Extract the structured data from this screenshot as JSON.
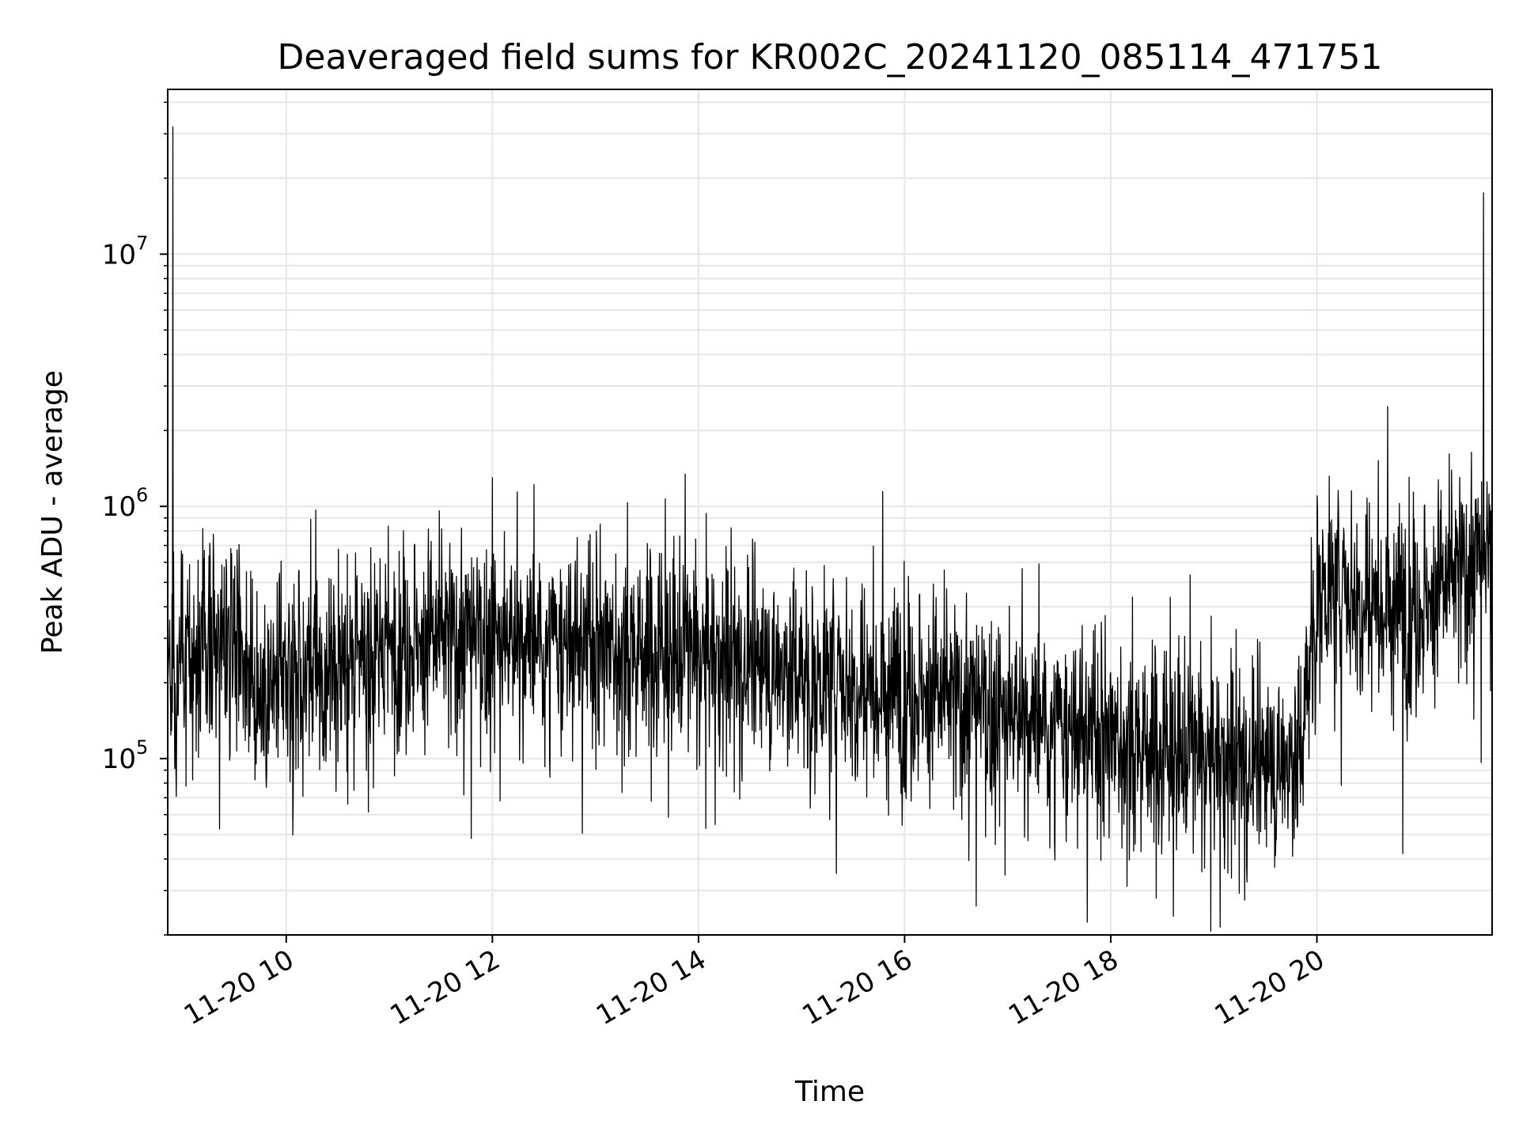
{
  "chart_data": {
    "type": "line",
    "title": "Deaveraged field sums for KR002C_20241120_085114_471751",
    "xlabel": "Time",
    "ylabel": "Peak ADU - average",
    "yscale": "log",
    "ylim": [
      20000,
      45000000
    ],
    "xlim": [
      "2024-11-20 08:51",
      "2024-11-20 21:42"
    ],
    "x_ticks": [
      {
        "at": "2024-11-20 10:00",
        "label": "11-20 10"
      },
      {
        "at": "2024-11-20 12:00",
        "label": "11-20 12"
      },
      {
        "at": "2024-11-20 14:00",
        "label": "11-20 14"
      },
      {
        "at": "2024-11-20 16:00",
        "label": "11-20 16"
      },
      {
        "at": "2024-11-20 18:00",
        "label": "11-20 18"
      },
      {
        "at": "2024-11-20 20:00",
        "label": "11-20 20"
      }
    ],
    "y_ticks": [
      {
        "value": 100000,
        "base": "10",
        "exp": "5"
      },
      {
        "value": 1000000,
        "base": "10",
        "exp": "6"
      },
      {
        "value": 10000000,
        "base": "10",
        "exp": "7"
      }
    ],
    "grid": true,
    "line_color": "#000000",
    "series": [
      {
        "name": "",
        "x": [
          "2024-11-20 08:51",
          "2024-11-20 09:00",
          "2024-11-20 09:15",
          "2024-11-20 09:30",
          "2024-11-20 09:40",
          "2024-11-20 10:00",
          "2024-11-20 10:30",
          "2024-11-20 11:00",
          "2024-11-20 11:30",
          "2024-11-20 12:00",
          "2024-11-20 12:30",
          "2024-11-20 13:00",
          "2024-11-20 13:30",
          "2024-11-20 14:00",
          "2024-11-20 14:30",
          "2024-11-20 15:00",
          "2024-11-20 15:30",
          "2024-11-20 16:00",
          "2024-11-20 16:30",
          "2024-11-20 17:00",
          "2024-11-20 17:30",
          "2024-11-20 18:00",
          "2024-11-20 18:30",
          "2024-11-20 19:00",
          "2024-11-20 19:30",
          "2024-11-20 19:50",
          "2024-11-20 20:00",
          "2024-11-20 20:30",
          "2024-11-20 21:00",
          "2024-11-20 21:30",
          "2024-11-20 21:42"
        ],
        "median": [
          250000,
          230000,
          300000,
          350000,
          200000,
          200000,
          230000,
          280000,
          300000,
          300000,
          280000,
          280000,
          270000,
          260000,
          240000,
          220000,
          210000,
          190000,
          170000,
          150000,
          130000,
          120000,
          110000,
          100000,
          95000,
          100000,
          500000,
          450000,
          400000,
          600000,
          600000
        ],
        "spikes": [
          {
            "x": "2024-11-20 08:54",
            "value": 32000000
          },
          {
            "x": "2024-11-20 12:00",
            "value": 1300000
          },
          {
            "x": "2024-11-20 20:50",
            "value": 42000
          },
          {
            "x": "2024-11-20 21:37",
            "value": 17500000
          }
        ]
      }
    ]
  }
}
